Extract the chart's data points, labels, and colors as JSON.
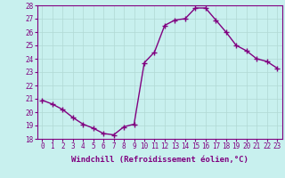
{
  "x": [
    0,
    1,
    2,
    3,
    4,
    5,
    6,
    7,
    8,
    9,
    10,
    11,
    12,
    13,
    14,
    15,
    16,
    17,
    18,
    19,
    20,
    21,
    22,
    23
  ],
  "y": [
    20.9,
    20.6,
    20.2,
    19.6,
    19.1,
    18.8,
    18.4,
    18.3,
    18.9,
    19.1,
    23.7,
    24.5,
    26.5,
    26.9,
    27.0,
    27.8,
    27.8,
    26.9,
    26.0,
    25.0,
    24.6,
    24.0,
    23.8,
    23.3
  ],
  "line_color": "#800080",
  "marker": "+",
  "marker_size": 4,
  "bg_color": "#c8f0ee",
  "grid_color": "#b0d8d4",
  "xlabel": "Windchill (Refroidissement éolien,°C)",
  "xlim": [
    -0.5,
    23.5
  ],
  "ylim": [
    18,
    28
  ],
  "xticks": [
    0,
    1,
    2,
    3,
    4,
    5,
    6,
    7,
    8,
    9,
    10,
    11,
    12,
    13,
    14,
    15,
    16,
    17,
    18,
    19,
    20,
    21,
    22,
    23
  ],
  "yticks": [
    18,
    19,
    20,
    21,
    22,
    23,
    24,
    25,
    26,
    27,
    28
  ],
  "tick_fontsize": 5.5,
  "xlabel_fontsize": 6.5,
  "line_width": 1.0
}
